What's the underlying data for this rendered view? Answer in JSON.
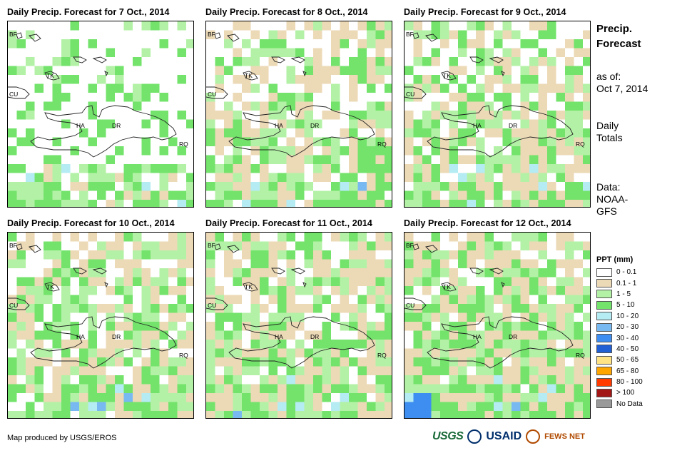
{
  "panels": [
    {
      "title": "Daily Precip. Forecast for 7 Oct., 2014",
      "seed": 7,
      "bias": 0
    },
    {
      "title": "Daily Precip. Forecast for 8 Oct., 2014",
      "seed": 8,
      "bias": 1
    },
    {
      "title": "Daily Precip. Forecast for 9 Oct., 2014",
      "seed": 9,
      "bias": 2
    },
    {
      "title": "Daily Precip. Forecast for 10 Oct., 2014",
      "seed": 10,
      "bias": 3
    },
    {
      "title": "Daily Precip. Forecast for 11 Oct., 2014",
      "seed": 11,
      "bias": 4
    },
    {
      "title": "Daily Precip. Forecast for 12 Oct., 2014",
      "seed": 12,
      "bias": 5
    }
  ],
  "map_labels": {
    "bf": "BF",
    "tk": "TK",
    "cu": "CU",
    "ha": "HA",
    "dr": "DR",
    "rq": "RQ"
  },
  "side": {
    "title1": "Precip.",
    "title2": "Forecast",
    "asof1": "as of:",
    "asof2": "Oct 7, 2014",
    "daily1": "Daily",
    "daily2": "Totals",
    "data1": "Data:",
    "data2": "NOAA-",
    "data3": "GFS"
  },
  "legend": {
    "title": "PPT (mm)",
    "items": [
      {
        "label": "0 - 0.1",
        "color": "#ffffff"
      },
      {
        "label": "0.1 - 1",
        "color": "#ecd9b6"
      },
      {
        "label": "1 - 5",
        "color": "#b3f2a6"
      },
      {
        "label": "5 - 10",
        "color": "#73e36b"
      },
      {
        "label": "10 - 20",
        "color": "#b5ebf3"
      },
      {
        "label": "20 - 30",
        "color": "#79b9f2"
      },
      {
        "label": "30 - 40",
        "color": "#3d8ef0"
      },
      {
        "label": "40 - 50",
        "color": "#2160d4"
      },
      {
        "label": "50 - 65",
        "color": "#ffe385"
      },
      {
        "label": "65 - 80",
        "color": "#ffa500"
      },
      {
        "label": "80 - 100",
        "color": "#ff3b00"
      },
      {
        "label": "> 100",
        "color": "#a31616"
      },
      {
        "label": "No Data",
        "color": "#999999"
      }
    ]
  },
  "credit": "Map produced by USGS/EROS",
  "logos": {
    "usgs": "USGS",
    "usaid": "USAID",
    "fews": "FEWS NET"
  }
}
